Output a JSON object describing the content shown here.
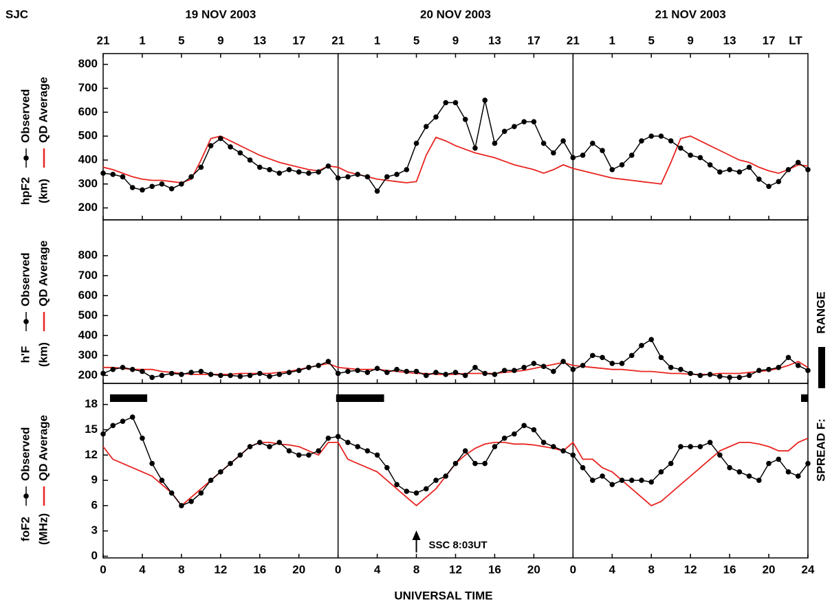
{
  "station": "SJC",
  "days": [
    "19 NOV 2003",
    "20 NOV 2003",
    "21 NOV 2003"
  ],
  "lt_ticks": [
    {
      "value": 0,
      "label": "21"
    },
    {
      "value": 4,
      "label": "1"
    },
    {
      "value": 8,
      "label": "5"
    },
    {
      "value": 12,
      "label": "9"
    },
    {
      "value": 16,
      "label": "13"
    },
    {
      "value": 20,
      "label": "17"
    },
    {
      "value": 24,
      "label": "21"
    },
    {
      "value": 28,
      "label": "1"
    },
    {
      "value": 32,
      "label": "5"
    },
    {
      "value": 36,
      "label": "9"
    },
    {
      "value": 40,
      "label": "13"
    },
    {
      "value": 44,
      "label": "17"
    },
    {
      "value": 48,
      "label": "21"
    },
    {
      "value": 52,
      "label": "1"
    },
    {
      "value": 56,
      "label": "5"
    },
    {
      "value": 60,
      "label": "9"
    },
    {
      "value": 64,
      "label": "13"
    },
    {
      "value": 68,
      "label": "17"
    }
  ],
  "lt_label": "LT",
  "xlabel": "UNIVERSAL TIME",
  "range_label": "RANGE",
  "spread_f_label": "SPREAD F:",
  "chart_data": [
    {
      "type": "line",
      "ylabel": [
        "hpF2",
        "(km)"
      ],
      "xlim": [
        0,
        72
      ],
      "ylim": [
        150,
        845
      ],
      "yticks": [
        200,
        300,
        400,
        500,
        600,
        700,
        800
      ],
      "x": [
        0,
        1,
        2,
        3,
        4,
        5,
        6,
        7,
        8,
        9,
        10,
        11,
        12,
        13,
        14,
        15,
        16,
        17,
        18,
        19,
        20,
        21,
        22,
        23,
        24,
        25,
        26,
        27,
        28,
        29,
        30,
        31,
        32,
        33,
        34,
        35,
        36,
        37,
        38,
        39,
        40,
        41,
        42,
        43,
        44,
        45,
        46,
        47,
        48,
        49,
        50,
        51,
        52,
        53,
        54,
        55,
        56,
        57,
        58,
        59,
        60,
        61,
        62,
        63,
        64,
        65,
        66,
        67,
        68,
        69,
        70,
        71,
        72
      ],
      "series": [
        {
          "name": "Observed",
          "color": "#000000",
          "marker": true,
          "values": [
            345,
            340,
            330,
            285,
            275,
            290,
            300,
            280,
            300,
            330,
            370,
            460,
            490,
            455,
            430,
            400,
            370,
            360,
            345,
            360,
            350,
            345,
            350,
            375,
            325,
            330,
            340,
            330,
            270,
            330,
            340,
            360,
            470,
            540,
            580,
            640,
            640,
            570,
            450,
            650,
            470,
            520,
            540,
            560,
            560,
            470,
            430,
            480,
            410,
            420,
            470,
            440,
            360,
            380,
            420,
            480,
            500,
            500,
            480,
            450,
            420,
            410,
            380,
            350,
            360,
            350,
            370,
            320,
            290,
            310,
            360,
            390,
            360
          ]
        },
        {
          "name": "QD Average",
          "color": "#e8231f",
          "marker": false,
          "values": [
            370,
            360,
            345,
            330,
            320,
            315,
            315,
            310,
            305,
            320,
            400,
            490,
            500,
            480,
            460,
            440,
            420,
            405,
            390,
            380,
            370,
            360,
            355,
            375,
            370,
            350,
            340,
            330,
            320,
            315,
            310,
            305,
            310,
            420,
            495,
            480,
            460,
            445,
            430,
            420,
            410,
            395,
            380,
            370,
            360,
            345,
            360,
            380,
            365,
            355,
            345,
            335,
            325,
            320,
            315,
            310,
            305,
            300,
            390,
            490,
            500,
            480,
            460,
            440,
            420,
            400,
            390,
            370,
            355,
            345,
            360,
            380,
            375
          ]
        }
      ]
    },
    {
      "type": "line",
      "ylabel": [
        "h'F",
        "(km)"
      ],
      "xlim": [
        0,
        72
      ],
      "ylim": [
        160,
        980
      ],
      "yticks": [
        200,
        300,
        400,
        500,
        600,
        700,
        800
      ],
      "x": [
        0,
        1,
        2,
        3,
        4,
        5,
        6,
        7,
        8,
        9,
        10,
        11,
        12,
        13,
        14,
        15,
        16,
        17,
        18,
        19,
        20,
        21,
        22,
        23,
        24,
        25,
        26,
        27,
        28,
        29,
        30,
        31,
        32,
        33,
        34,
        35,
        36,
        37,
        38,
        39,
        40,
        41,
        42,
        43,
        44,
        45,
        46,
        47,
        48,
        49,
        50,
        51,
        52,
        53,
        54,
        55,
        56,
        57,
        58,
        59,
        60,
        61,
        62,
        63,
        64,
        65,
        66,
        67,
        68,
        69,
        70,
        71,
        72
      ],
      "series": [
        {
          "name": "Observed",
          "color": "#000000",
          "marker": true,
          "values": [
            210,
            230,
            240,
            230,
            220,
            190,
            200,
            210,
            205,
            215,
            220,
            205,
            200,
            200,
            195,
            200,
            210,
            195,
            205,
            215,
            225,
            240,
            250,
            270,
            210,
            220,
            225,
            215,
            235,
            215,
            230,
            220,
            220,
            200,
            215,
            205,
            215,
            200,
            240,
            210,
            205,
            225,
            225,
            240,
            260,
            245,
            220,
            270,
            230,
            250,
            300,
            290,
            260,
            260,
            300,
            350,
            380,
            290,
            240,
            230,
            210,
            200,
            205,
            195,
            190,
            190,
            200,
            225,
            230,
            240,
            290,
            250,
            225
          ]
        },
        {
          "name": "QD Average",
          "color": "#e8231f",
          "marker": false,
          "values": [
            240,
            240,
            235,
            230,
            230,
            230,
            220,
            215,
            210,
            205,
            205,
            205,
            205,
            205,
            210,
            210,
            210,
            210,
            215,
            220,
            230,
            240,
            250,
            260,
            240,
            235,
            230,
            230,
            230,
            225,
            220,
            215,
            210,
            210,
            205,
            205,
            205,
            210,
            210,
            210,
            210,
            215,
            220,
            225,
            235,
            245,
            255,
            265,
            250,
            245,
            240,
            235,
            230,
            230,
            225,
            220,
            220,
            215,
            210,
            210,
            205,
            205,
            205,
            210,
            210,
            210,
            215,
            220,
            225,
            235,
            250,
            270,
            240
          ]
        }
      ]
    },
    {
      "type": "line",
      "ylabel": [
        "foF2",
        "(MHz)"
      ],
      "xlim": [
        0,
        72
      ],
      "ylim": [
        -0.2,
        20.5
      ],
      "yticks": [
        0,
        3,
        6,
        9,
        12,
        15,
        18
      ],
      "xticks": [
        0,
        4,
        8,
        12,
        16,
        20,
        {
          "value": 24,
          "label": "0"
        },
        {
          "value": 28,
          "label": "4"
        },
        {
          "value": 32,
          "label": "8"
        },
        {
          "value": 36,
          "label": "12"
        },
        {
          "value": 40,
          "label": "16"
        },
        {
          "value": 44,
          "label": "20"
        },
        {
          "value": 48,
          "label": "0"
        },
        {
          "value": 52,
          "label": "4"
        },
        {
          "value": 56,
          "label": "8"
        },
        {
          "value": 60,
          "label": "12"
        },
        {
          "value": 64,
          "label": "16"
        },
        {
          "value": 68,
          "label": "20"
        },
        {
          "value": 72,
          "label": "24"
        }
      ],
      "x": [
        0,
        1,
        2,
        3,
        4,
        5,
        6,
        7,
        8,
        9,
        10,
        11,
        12,
        13,
        14,
        15,
        16,
        17,
        18,
        19,
        20,
        21,
        22,
        23,
        24,
        25,
        26,
        27,
        28,
        29,
        30,
        31,
        32,
        33,
        34,
        35,
        36,
        37,
        38,
        39,
        40,
        41,
        42,
        43,
        44,
        45,
        46,
        47,
        48,
        49,
        50,
        51,
        52,
        53,
        54,
        55,
        56,
        57,
        58,
        59,
        60,
        61,
        62,
        63,
        64,
        65,
        66,
        67,
        68,
        69,
        70,
        71,
        72
      ],
      "series": [
        {
          "name": "Observed",
          "color": "#000000",
          "marker": true,
          "values": [
            14.5,
            15.5,
            16,
            16.5,
            14,
            11,
            9,
            7.5,
            6,
            6.5,
            7.5,
            9,
            10,
            11,
            12,
            13,
            13.5,
            13,
            13.5,
            12.5,
            12,
            12,
            12.5,
            14,
            14.2,
            13.5,
            13,
            12.5,
            12,
            10.5,
            8.5,
            7.7,
            7.5,
            8,
            9,
            9.5,
            11,
            12.5,
            11,
            11,
            13,
            14,
            14.5,
            15.5,
            15,
            13.5,
            13,
            12.5,
            12,
            10.5,
            9,
            9.5,
            8.5,
            9,
            9,
            9,
            8.8,
            10,
            11,
            13,
            13,
            13,
            13.5,
            12,
            10.5,
            10,
            9.5,
            9,
            11,
            11.5,
            10,
            9.5,
            11
          ]
        },
        {
          "name": "QD Average",
          "color": "#e8231f",
          "marker": false,
          "values": [
            13,
            11.5,
            11,
            10.5,
            10,
            9.5,
            8.5,
            7.5,
            6,
            7,
            8,
            9,
            10,
            11,
            12,
            13,
            13.5,
            13.5,
            13.3,
            13.2,
            13,
            12.5,
            12,
            13.5,
            13.5,
            11.5,
            11,
            10.5,
            10,
            9,
            8,
            7,
            6,
            7,
            8,
            9.5,
            11,
            12,
            12.8,
            13.3,
            13.5,
            13.5,
            13.3,
            13.3,
            13.2,
            13,
            12.8,
            12.5,
            13.5,
            11.5,
            11.5,
            10.5,
            10,
            9,
            8,
            7,
            6,
            6.5,
            7.5,
            8.5,
            9.5,
            10.5,
            11.5,
            12.5,
            13,
            13.5,
            13.5,
            13.3,
            13,
            12.5,
            12.5,
            13.5,
            14
          ]
        }
      ],
      "spread_f": [
        [
          0.7,
          4.5
        ],
        [
          23.8,
          28.7
        ],
        [
          71.3,
          72
        ]
      ],
      "annotations": [
        {
          "text": "SSC 8:03UT",
          "x": 32
        }
      ]
    }
  ]
}
